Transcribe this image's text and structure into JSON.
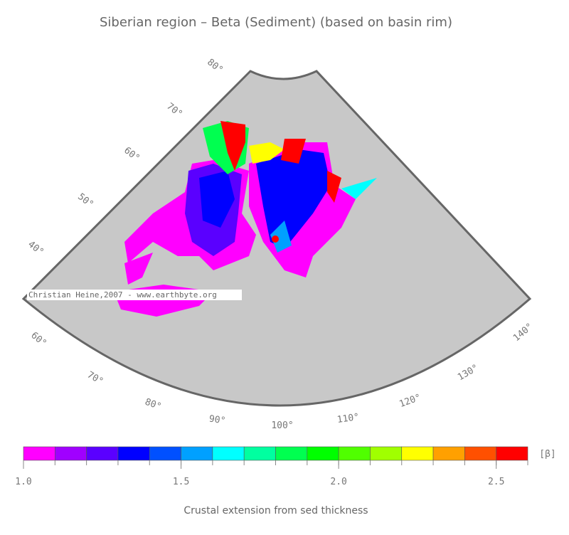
{
  "title": "Siberian region – Beta (Sediment) (based on basin rim)",
  "map": {
    "lat_labels": [
      "80°",
      "70°",
      "60°",
      "50°",
      "40°"
    ],
    "lon_labels": [
      "60°",
      "70°",
      "80°",
      "90°",
      "100°",
      "110°",
      "120°",
      "130°",
      "140°"
    ],
    "credit": "Christian Heine,2007 - www.earthbyte.org"
  },
  "colorbar": {
    "bins": [
      1.0,
      1.1,
      1.2,
      1.3,
      1.4,
      1.5,
      1.6,
      1.7,
      1.8,
      1.9,
      2.0,
      2.1,
      2.2,
      2.3,
      2.4,
      2.5,
      2.6
    ],
    "colors": [
      "#ff00ff",
      "#a000ff",
      "#5a00ff",
      "#0000ff",
      "#0050ff",
      "#00a0ff",
      "#00ffff",
      "#00ffa0",
      "#00ff50",
      "#00ff00",
      "#50ff00",
      "#a0ff00",
      "#ffff00",
      "#ffa000",
      "#ff5000",
      "#ff0000"
    ],
    "xlim": [
      1.0,
      2.6
    ],
    "ticks": [
      {
        "value": 1.0,
        "label": "1.0"
      },
      1.5,
      {
        "value": 2.0,
        "label": "2.0"
      },
      2.5
    ],
    "unit": "[β]",
    "label": "Crustal extension from sed thickness"
  }
}
